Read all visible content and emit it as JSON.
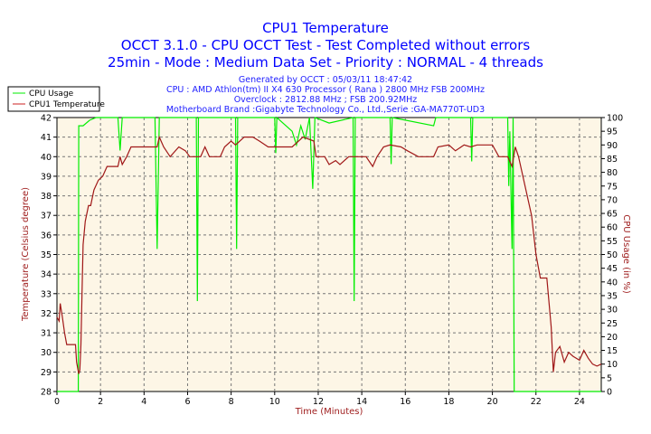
{
  "chart_data": {
    "type": "line",
    "title": "CPU1 Temperature",
    "subtitles": [
      "OCCT 3.1.0 - CPU OCCT Test - Test Completed without errors",
      "25min - Mode : Medium Data Set - Priority : NORMAL - 4 threads"
    ],
    "info_lines": [
      "Generated by OCCT : 05/03/11 18:47:42",
      "CPU : AMD Athlon(tm) II X4 630 Processor ( Rana ) 2800 MHz FSB 200MHz",
      "Overclock : 2812.88 MHz ; FSB 200.92MHz",
      "Motherboard Brand :Gigabyte Technology Co., Ltd.,Serie :GA-MA770T-UD3"
    ],
    "xlabel": "Time (Minutes)",
    "ylabel": "Temperature (Celsius degree)",
    "y2label": "CPU Usage (in %)",
    "xlim": [
      0,
      25
    ],
    "ylim": [
      28,
      42
    ],
    "y2lim": [
      0,
      100
    ],
    "xticks": [
      "0",
      "2",
      "4",
      "6",
      "8",
      "10",
      "12",
      "14",
      "16",
      "18",
      "20",
      "22",
      "24"
    ],
    "yticks": [
      "28",
      "29",
      "30",
      "31",
      "32",
      "33",
      "34",
      "35",
      "36",
      "37",
      "38",
      "39",
      "40",
      "41",
      "42"
    ],
    "y2ticks": [
      "0",
      "5",
      "10",
      "15",
      "20",
      "25",
      "30",
      "35",
      "40",
      "45",
      "50",
      "55",
      "60",
      "65",
      "70",
      "75",
      "80",
      "85",
      "90",
      "95",
      "100"
    ],
    "grid": true,
    "legend_position": "top-left",
    "colors": {
      "background": "#fdf6e6",
      "cpu_usage": "#00ee00",
      "temperature": "#a01818",
      "title": "#0000ff"
    },
    "series": [
      {
        "name": "CPU Usage",
        "axis": "right",
        "points": [
          [
            0,
            0
          ],
          [
            0.98,
            0
          ],
          [
            1.0,
            97
          ],
          [
            1.2,
            97
          ],
          [
            1.5,
            99
          ],
          [
            1.8,
            100
          ],
          [
            2.8,
            100
          ],
          [
            2.9,
            88
          ],
          [
            3.0,
            100
          ],
          [
            4.5,
            100
          ],
          [
            4.6,
            52
          ],
          [
            4.7,
            100
          ],
          [
            6.4,
            100
          ],
          [
            6.45,
            33
          ],
          [
            6.5,
            100
          ],
          [
            8.2,
            100
          ],
          [
            8.25,
            52
          ],
          [
            8.3,
            100
          ],
          [
            10.0,
            100
          ],
          [
            10.05,
            87
          ],
          [
            10.1,
            100
          ],
          [
            10.8,
            95
          ],
          [
            11.0,
            90
          ],
          [
            11.2,
            97
          ],
          [
            11.4,
            92
          ],
          [
            11.6,
            100
          ],
          [
            11.75,
            74
          ],
          [
            11.85,
            100
          ],
          [
            12.5,
            98
          ],
          [
            13.6,
            100
          ],
          [
            13.65,
            33
          ],
          [
            13.7,
            100
          ],
          [
            15.3,
            100
          ],
          [
            15.35,
            83
          ],
          [
            15.4,
            100
          ],
          [
            17.3,
            97
          ],
          [
            17.4,
            100
          ],
          [
            19.0,
            100
          ],
          [
            19.05,
            84
          ],
          [
            19.1,
            100
          ],
          [
            20.7,
            100
          ],
          [
            20.75,
            75
          ],
          [
            20.8,
            95
          ],
          [
            20.9,
            52
          ],
          [
            20.95,
            100
          ],
          [
            21.0,
            0
          ],
          [
            25,
            0
          ]
        ]
      },
      {
        "name": "CPU1 Temperature",
        "axis": "left",
        "points": [
          [
            0,
            31.8
          ],
          [
            0.1,
            31.6
          ],
          [
            0.15,
            32.5
          ],
          [
            0.25,
            31.8
          ],
          [
            0.35,
            31
          ],
          [
            0.45,
            30.4
          ],
          [
            0.85,
            30.4
          ],
          [
            0.9,
            29.5
          ],
          [
            1.0,
            28.9
          ],
          [
            1.05,
            29.1
          ],
          [
            1.1,
            30.4
          ],
          [
            1.15,
            33
          ],
          [
            1.2,
            35.5
          ],
          [
            1.3,
            36.7
          ],
          [
            1.45,
            37.5
          ],
          [
            1.55,
            37.5
          ],
          [
            1.7,
            38.3
          ],
          [
            1.9,
            38.8
          ],
          [
            2.1,
            39
          ],
          [
            2.3,
            39.5
          ],
          [
            2.7,
            39.5
          ],
          [
            2.8,
            39.5
          ],
          [
            2.9,
            40
          ],
          [
            3.0,
            39.6
          ],
          [
            3.2,
            40
          ],
          [
            3.4,
            40.5
          ],
          [
            4.6,
            40.5
          ],
          [
            4.7,
            41
          ],
          [
            4.9,
            40.5
          ],
          [
            5.2,
            40
          ],
          [
            5.6,
            40.5
          ],
          [
            5.9,
            40.3
          ],
          [
            6.1,
            40
          ],
          [
            6.6,
            40
          ],
          [
            6.8,
            40.5
          ],
          [
            7.0,
            40
          ],
          [
            7.5,
            40
          ],
          [
            7.7,
            40.5
          ],
          [
            8.0,
            40.8
          ],
          [
            8.2,
            40.6
          ],
          [
            8.6,
            41
          ],
          [
            9.0,
            41
          ],
          [
            9.3,
            40.8
          ],
          [
            9.7,
            40.5
          ],
          [
            10.2,
            40.5
          ],
          [
            10.8,
            40.5
          ],
          [
            11.3,
            41
          ],
          [
            11.8,
            40.8
          ],
          [
            11.9,
            40
          ],
          [
            12.3,
            40
          ],
          [
            12.5,
            39.6
          ],
          [
            12.8,
            39.8
          ],
          [
            13.0,
            39.6
          ],
          [
            13.4,
            40
          ],
          [
            14.2,
            40
          ],
          [
            14.5,
            39.5
          ],
          [
            14.7,
            40
          ],
          [
            15.0,
            40.5
          ],
          [
            15.3,
            40.6
          ],
          [
            15.8,
            40.5
          ],
          [
            16.1,
            40.3
          ],
          [
            16.6,
            40
          ],
          [
            17.3,
            40
          ],
          [
            17.5,
            40.5
          ],
          [
            18.0,
            40.6
          ],
          [
            18.3,
            40.3
          ],
          [
            18.7,
            40.6
          ],
          [
            19.0,
            40.5
          ],
          [
            19.3,
            40.6
          ],
          [
            20.0,
            40.6
          ],
          [
            20.3,
            40
          ],
          [
            20.7,
            40
          ],
          [
            20.9,
            39.5
          ],
          [
            21.05,
            40.5
          ],
          [
            21.2,
            40
          ],
          [
            21.4,
            39
          ],
          [
            21.6,
            38
          ],
          [
            21.8,
            37
          ],
          [
            22.0,
            35
          ],
          [
            22.2,
            33.8
          ],
          [
            22.5,
            33.8
          ],
          [
            22.7,
            31.3
          ],
          [
            22.8,
            29
          ],
          [
            22.9,
            30
          ],
          [
            23.1,
            30.3
          ],
          [
            23.3,
            29.5
          ],
          [
            23.5,
            30
          ],
          [
            23.7,
            29.8
          ],
          [
            24.0,
            29.6
          ],
          [
            24.2,
            30.1
          ],
          [
            24.4,
            29.7
          ],
          [
            24.6,
            29.4
          ],
          [
            24.8,
            29.3
          ],
          [
            25,
            29.4
          ]
        ]
      }
    ]
  }
}
